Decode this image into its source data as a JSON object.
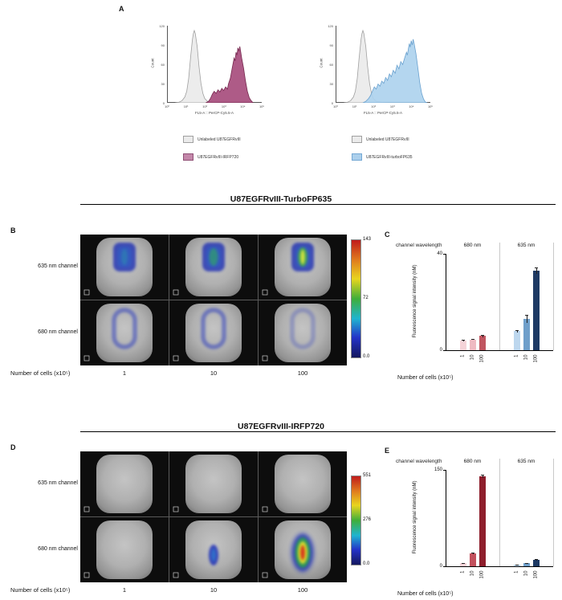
{
  "figure": {
    "panels": {
      "a": "A",
      "b": "B",
      "c": "C",
      "d": "D",
      "e": "E"
    },
    "section_titles": {
      "b": "U87EGFRvIII-TurboFP635",
      "d": "U87EGFRvIII-IRFP720"
    }
  },
  "legends": {
    "left": [
      {
        "label": "Unlabeled U87EGFRvIII",
        "swatch": "#ebebeb",
        "border": "#a0a0a0"
      },
      {
        "label": "U87EGFRvIII-IRFP720",
        "swatch": "#c387a9",
        "border": "#8f4f75"
      }
    ],
    "right": [
      {
        "label": "Unlabeled U87EGFRvIII",
        "swatch": "#ebebeb",
        "border": "#a0a0a0"
      },
      {
        "label": "U87EGFRvIII-turboFP635",
        "swatch": "#abcfec",
        "border": "#74a8d4"
      }
    ]
  },
  "imaging": {
    "colorbar_colors": [
      "#c01b1b",
      "#e07c1e",
      "#e8d51f",
      "#3fae3a",
      "#1fb4d0",
      "#2433c8",
      "#14175e"
    ],
    "b": {
      "row_labels": [
        "635 nm channel",
        "680 nm channel"
      ],
      "col_labels": [
        "1",
        "10",
        "100"
      ],
      "note": "Number of cells (x10⁵)",
      "colorbar": [
        "143",
        "72",
        "0.0"
      ],
      "cells": [
        [
          "patch-blue",
          "patch-blue-strong",
          "patch-green-core"
        ],
        [
          "ring-blue",
          "ring-blue",
          "ring-blue-faint"
        ]
      ]
    },
    "d": {
      "row_labels": [
        "635 nm channel",
        "680 nm channel"
      ],
      "col_labels": [
        "1",
        "10",
        "100"
      ],
      "note": "Number of cells (x10⁵)",
      "colorbar": [
        "551",
        "276",
        "0.0"
      ],
      "cells": [
        [
          "none",
          "none",
          "none"
        ],
        [
          "none",
          "blob-blue-small",
          "hot-core"
        ]
      ]
    }
  },
  "chart_data": {
    "flow_left": {
      "type": "histogram",
      "ylabel": "Count",
      "xlabel": "FL5-A :: PerCP-Cy5.5-A",
      "yticks": [
        "120",
        "90",
        "60",
        "30",
        "0"
      ],
      "xticks": [
        "10⁰",
        "10¹",
        "10²",
        "10³",
        "10⁴",
        "10⁵"
      ],
      "series": [
        {
          "name": "Unlabeled U87EGFRvIII",
          "fill": "#ebebeb",
          "stroke": "#a0a0a0",
          "opacity": 0.95,
          "points": [
            [
              8,
              0
            ],
            [
              12,
              1
            ],
            [
              15,
              3
            ],
            [
              18,
              8
            ],
            [
              20,
              16
            ],
            [
              22,
              34
            ],
            [
              24,
              62
            ],
            [
              26,
              88
            ],
            [
              27,
              96
            ],
            [
              28,
              100
            ],
            [
              29,
              96
            ],
            [
              31,
              78
            ],
            [
              33,
              50
            ],
            [
              35,
              27
            ],
            [
              37,
              13
            ],
            [
              39,
              6
            ],
            [
              42,
              2
            ],
            [
              47,
              1
            ],
            [
              54,
              0
            ]
          ]
        },
        {
          "name": "U87EGFRvIII-IRFP720",
          "fill": "#a5497a",
          "stroke": "#76294f",
          "opacity": 0.9,
          "points": [
            [
              40,
              0
            ],
            [
              43,
              2
            ],
            [
              45,
              6
            ],
            [
              47,
              12
            ],
            [
              49,
              16
            ],
            [
              51,
              13
            ],
            [
              53,
              18
            ],
            [
              55,
              15
            ],
            [
              57,
              20
            ],
            [
              59,
              17
            ],
            [
              61,
              22
            ],
            [
              63,
              19
            ],
            [
              64,
              26
            ],
            [
              66,
              34
            ],
            [
              68,
              48
            ],
            [
              70,
              62
            ],
            [
              71,
              58
            ],
            [
              72,
              70
            ],
            [
              73,
              66
            ],
            [
              74,
              76
            ],
            [
              75,
              72
            ],
            [
              76,
              78
            ],
            [
              77,
              70
            ],
            [
              78,
              62
            ],
            [
              80,
              48
            ],
            [
              82,
              30
            ],
            [
              84,
              16
            ],
            [
              86,
              7
            ],
            [
              88,
              3
            ],
            [
              90,
              0
            ]
          ]
        }
      ]
    },
    "flow_right": {
      "type": "histogram",
      "ylabel": "Count",
      "xlabel": "FL5-A :: PerCP-Cy5.5-A",
      "yticks": [
        "120",
        "90",
        "60",
        "30",
        "0"
      ],
      "xticks": [
        "10⁰",
        "10¹",
        "10²",
        "10³",
        "10⁴",
        "10⁵"
      ],
      "series": [
        {
          "name": "Unlabeled U87EGFRvIII",
          "fill": "#ebebeb",
          "stroke": "#a0a0a0",
          "opacity": 0.95,
          "points": [
            [
              8,
              0
            ],
            [
              12,
              1
            ],
            [
              15,
              3
            ],
            [
              18,
              8
            ],
            [
              20,
              16
            ],
            [
              22,
              34
            ],
            [
              24,
              62
            ],
            [
              26,
              88
            ],
            [
              27,
              96
            ],
            [
              28,
              100
            ],
            [
              29,
              96
            ],
            [
              31,
              78
            ],
            [
              33,
              50
            ],
            [
              35,
              27
            ],
            [
              37,
              13
            ],
            [
              39,
              6
            ],
            [
              42,
              2
            ],
            [
              47,
              1
            ],
            [
              54,
              0
            ]
          ]
        },
        {
          "name": "U87EGFRvIII-turboFP635",
          "fill": "#aed2ee",
          "stroke": "#69a1cf",
          "opacity": 0.92,
          "points": [
            [
              28,
              0
            ],
            [
              31,
              2
            ],
            [
              34,
              6
            ],
            [
              36,
              10
            ],
            [
              38,
              16
            ],
            [
              40,
              22
            ],
            [
              42,
              19
            ],
            [
              44,
              26
            ],
            [
              46,
              23
            ],
            [
              48,
              30
            ],
            [
              50,
              27
            ],
            [
              52,
              35
            ],
            [
              54,
              31
            ],
            [
              56,
              40
            ],
            [
              58,
              36
            ],
            [
              60,
              45
            ],
            [
              62,
              41
            ],
            [
              64,
              52
            ],
            [
              66,
              47
            ],
            [
              68,
              57
            ],
            [
              70,
              53
            ],
            [
              72,
              62
            ],
            [
              74,
              70
            ],
            [
              75,
              66
            ],
            [
              76,
              75
            ],
            [
              77,
              82
            ],
            [
              78,
              77
            ],
            [
              79,
              86
            ],
            [
              80,
              80
            ],
            [
              81,
              88
            ],
            [
              82,
              82
            ],
            [
              84,
              68
            ],
            [
              86,
              48
            ],
            [
              88,
              28
            ],
            [
              90,
              13
            ],
            [
              92,
              5
            ],
            [
              94,
              1
            ],
            [
              96,
              0
            ]
          ]
        }
      ]
    },
    "bars_c": {
      "type": "bar",
      "header": "channel wavelength",
      "ylabel": "Fluorescence signal intensity (nM)",
      "note": "Number of cells (x10⁵)",
      "ylim": [
        0,
        40
      ],
      "yticks": [
        0,
        40
      ],
      "groups": [
        {
          "label": "680 nm",
          "categories": [
            "1",
            "10",
            "100"
          ],
          "values": [
            4,
            4.5,
            6
          ],
          "errors": [
            0.3,
            0.3,
            0.5
          ],
          "colors": [
            "#f5d3d8",
            "#efbac2",
            "#c05560"
          ]
        },
        {
          "label": "635 nm",
          "categories": [
            "1",
            "10",
            "100"
          ],
          "values": [
            8,
            13,
            33
          ],
          "errors": [
            0.5,
            1.6,
            1.2
          ],
          "colors": [
            "#bdd7ee",
            "#6f9fca",
            "#1e3a64"
          ]
        }
      ]
    },
    "bars_e": {
      "type": "bar",
      "header": "channel wavelength",
      "ylabel": "Fluorescence signal intensity (nM)",
      "note": "Number of cells (x10⁵)",
      "ylim": [
        0,
        150
      ],
      "yticks": [
        0,
        150
      ],
      "groups": [
        {
          "label": "680 nm",
          "categories": [
            "1",
            "10",
            "100"
          ],
          "values": [
            5,
            20,
            140
          ],
          "errors": [
            0.5,
            1.5,
            3
          ],
          "colors": [
            "#f5d3d8",
            "#c2505c",
            "#8e1e2c"
          ]
        },
        {
          "label": "635 nm",
          "categories": [
            "1",
            "10",
            "100"
          ],
          "values": [
            2.5,
            4.5,
            10
          ],
          "errors": [
            0.3,
            0.5,
            1
          ],
          "colors": [
            "#bdd7ee",
            "#6f9fca",
            "#1e3a64"
          ]
        }
      ]
    }
  }
}
